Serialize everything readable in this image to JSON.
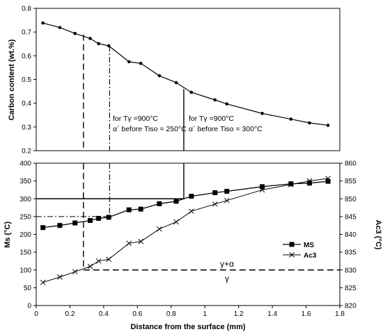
{
  "chart_data": [
    {
      "id": "carbon",
      "type": "line",
      "ylabel": "Carbon content (wt.%)",
      "ylim": [
        0.2,
        0.8
      ],
      "yticks": [
        "0.2",
        "0.3",
        "0.4",
        "0.5",
        "0.6",
        "0.7",
        "0.8"
      ],
      "xlim": [
        0,
        1.8
      ],
      "grid": false,
      "series": [
        {
          "x": [
            0.04,
            0.14,
            0.23,
            0.32,
            0.37,
            0.43,
            0.55,
            0.62,
            0.73,
            0.83,
            0.92,
            1.06,
            1.13,
            1.34,
            1.51,
            1.62,
            1.73
          ],
          "y": [
            0.738,
            0.719,
            0.694,
            0.673,
            0.651,
            0.642,
            0.575,
            0.568,
            0.516,
            0.487,
            0.446,
            0.414,
            0.397,
            0.357,
            0.333,
            0.317,
            0.307
          ]
        }
      ],
      "annotations": [
        {
          "line1": "for Tγ =900°C",
          "line2": "α´ before Tiso = 250°C"
        },
        {
          "line1": "for Tγ =900°C",
          "line2": "α´ before Tiso = 300°C"
        }
      ]
    },
    {
      "id": "ms_ac3",
      "type": "line",
      "xlabel": "Distance from the surface (mm)",
      "ylabel": "Ms (°C)",
      "ylabel_right": "Ac3 (°C)",
      "xlim": [
        0,
        1.8
      ],
      "xticks": [
        "0",
        "0.2",
        "0.4",
        "0.6",
        "0.8",
        "1",
        "1.2",
        "1.4",
        "1.6",
        "1.8"
      ],
      "ylim": [
        0,
        400
      ],
      "yticks": [
        "0",
        "50",
        "100",
        "150",
        "200",
        "250",
        "300",
        "350",
        "400"
      ],
      "ylim_right": [
        820,
        860
      ],
      "yticks_right": [
        "820",
        "825",
        "830",
        "835",
        "840",
        "845",
        "850",
        "855",
        "860"
      ],
      "grid": false,
      "legend_position": "center-right",
      "series": [
        {
          "name": "MS",
          "marker": "square",
          "axis": "left",
          "x": [
            0.04,
            0.14,
            0.23,
            0.32,
            0.37,
            0.43,
            0.55,
            0.62,
            0.73,
            0.83,
            0.92,
            1.06,
            1.13,
            1.34,
            1.51,
            1.62,
            1.73
          ],
          "y": [
            219,
            225,
            232,
            239,
            245,
            248,
            269,
            271,
            286,
            293,
            307,
            317,
            321,
            334,
            342,
            344,
            349
          ]
        },
        {
          "name": "Ac3",
          "marker": "x",
          "axis": "right",
          "x": [
            0.04,
            0.14,
            0.23,
            0.32,
            0.37,
            0.43,
            0.55,
            0.62,
            0.73,
            0.83,
            0.92,
            1.06,
            1.13,
            1.34,
            1.51,
            1.62,
            1.73
          ],
          "y": [
            826.5,
            828,
            829.5,
            831,
            832.5,
            833,
            837.5,
            838,
            841.5,
            843.5,
            846.5,
            848.5,
            849.5,
            852.5,
            854,
            855,
            855.7
          ]
        }
      ],
      "phase_labels": {
        "upper": "γ+α",
        "lower": "γ"
      }
    }
  ]
}
